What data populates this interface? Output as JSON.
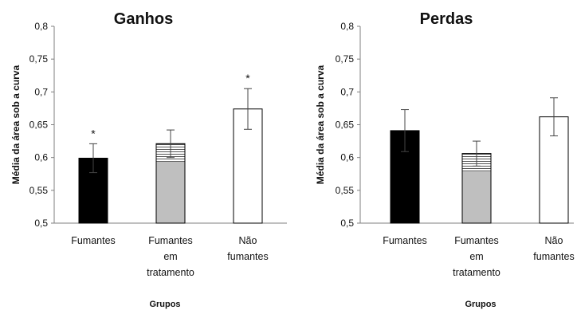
{
  "chart_data": [
    {
      "type": "bar",
      "title": "Ganhos",
      "ylabel": "Média da área sob a curva",
      "xlabel": "Grupos",
      "ylim": [
        0.5,
        0.8
      ],
      "yticks": [
        "0,5",
        "0,55",
        "0,6",
        "0,65",
        "0,7",
        "0,75",
        "0,8"
      ],
      "categories": [
        [
          "Fumantes"
        ],
        [
          "Fumantes",
          "em",
          "tratamento"
        ],
        [
          "Não",
          "fumantes"
        ]
      ],
      "values": [
        0.599,
        0.621,
        0.674
      ],
      "errors": [
        0.022,
        0.021,
        0.031
      ],
      "annotations": [
        "*",
        "",
        "*"
      ],
      "bar_styles": [
        {
          "fill": "#000000",
          "pattern": "solid"
        },
        {
          "fill": "#bfbfbf",
          "pattern": "horizontal-lines-top"
        },
        {
          "fill": "#ffffff",
          "pattern": "solid"
        }
      ]
    },
    {
      "type": "bar",
      "title": "Perdas",
      "ylabel": "Média da área sob a curva",
      "xlabel": "Grupos",
      "ylim": [
        0.5,
        0.8
      ],
      "yticks": [
        "0,5",
        "0,55",
        "0,6",
        "0,65",
        "0,7",
        "0,75",
        "0,8"
      ],
      "categories": [
        [
          "Fumantes"
        ],
        [
          "Fumantes",
          "em",
          "tratamento"
        ],
        [
          "Não",
          "fumantes"
        ]
      ],
      "values": [
        0.641,
        0.606,
        0.662
      ],
      "errors": [
        0.032,
        0.019,
        0.029
      ],
      "annotations": [
        "",
        "",
        ""
      ],
      "bar_styles": [
        {
          "fill": "#000000",
          "pattern": "solid"
        },
        {
          "fill": "#bfbfbf",
          "pattern": "horizontal-lines-top"
        },
        {
          "fill": "#ffffff",
          "pattern": "solid"
        }
      ]
    }
  ]
}
